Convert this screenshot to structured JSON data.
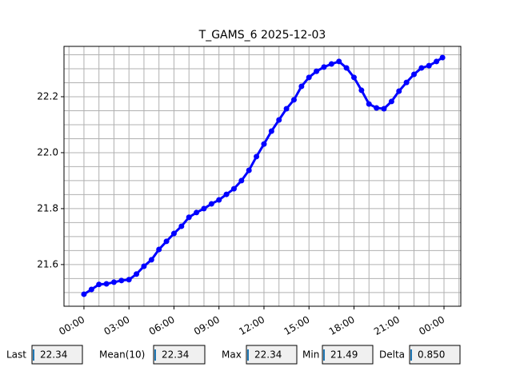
{
  "chart_data": {
    "type": "line",
    "title": "T_GAMS_6 2025-12-03",
    "x": [
      0,
      0.5,
      1,
      1.5,
      2,
      2.5,
      3,
      3.5,
      4,
      4.5,
      5,
      5.5,
      6,
      6.5,
      7,
      7.5,
      8,
      8.5,
      9,
      9.5,
      10,
      10.5,
      11,
      11.5,
      12,
      12.5,
      13,
      13.5,
      14,
      14.5,
      15,
      15.5,
      16,
      16.5,
      17,
      17.5,
      18,
      18.5,
      19,
      19.5,
      20,
      20.5,
      21,
      21.5,
      22,
      22.5,
      23,
      23.5,
      23.9
    ],
    "series": [
      {
        "color": "#0000ff",
        "values": [
          21.494,
          21.511,
          21.529,
          21.531,
          21.537,
          21.543,
          21.546,
          21.566,
          21.594,
          21.617,
          21.654,
          21.683,
          21.711,
          21.737,
          21.769,
          21.786,
          21.8,
          21.817,
          21.831,
          21.851,
          21.871,
          21.9,
          21.937,
          21.986,
          22.031,
          22.077,
          22.117,
          22.157,
          22.189,
          22.237,
          22.269,
          22.291,
          22.306,
          22.317,
          22.326,
          22.303,
          22.269,
          22.223,
          22.174,
          22.16,
          22.157,
          22.183,
          22.22,
          22.251,
          22.28,
          22.303,
          22.311,
          22.326,
          22.34
        ]
      }
    ],
    "xlim": [
      -1.33,
      25.12
    ],
    "xticks": [
      {
        "value": 0,
        "label": "00:00"
      },
      {
        "value": 3,
        "label": "03:00"
      },
      {
        "value": 6,
        "label": "06:00"
      },
      {
        "value": 9,
        "label": "09:00"
      },
      {
        "value": 12,
        "label": "12:00"
      },
      {
        "value": 15,
        "label": "15:00"
      },
      {
        "value": 18,
        "label": "18:00"
      },
      {
        "value": 21,
        "label": "21:00"
      },
      {
        "value": 24,
        "label": "00:00"
      }
    ],
    "ylim": [
      21.451,
      22.38
    ],
    "yticks": [
      {
        "value": 21.6,
        "label": "21.6"
      },
      {
        "value": 21.8,
        "label": "21.8"
      },
      {
        "value": 22.0,
        "label": "22.0"
      },
      {
        "value": 22.2,
        "label": "22.2"
      }
    ],
    "x_grid": [
      -1,
      0,
      1,
      2,
      3,
      4,
      5,
      6,
      7,
      8,
      9,
      10,
      11,
      12,
      13,
      14,
      15,
      16,
      17,
      18,
      19,
      20,
      21,
      22,
      23,
      24,
      25
    ],
    "y_grid": [
      21.45,
      21.5,
      21.55,
      21.6,
      21.65,
      21.7,
      21.75,
      21.8,
      21.85,
      21.9,
      21.95,
      22.0,
      22.05,
      22.1,
      22.15,
      22.2,
      22.25,
      22.3,
      22.35
    ],
    "grid": true
  },
  "widgets": [
    {
      "label": "Last",
      "value": "22.34"
    },
    {
      "label": "Mean(10)",
      "value": "22.34"
    },
    {
      "label": "Max",
      "value": "22.34"
    },
    {
      "label": "Min",
      "value": "21.49"
    },
    {
      "label": "Delta",
      "value": "0.850"
    }
  ]
}
